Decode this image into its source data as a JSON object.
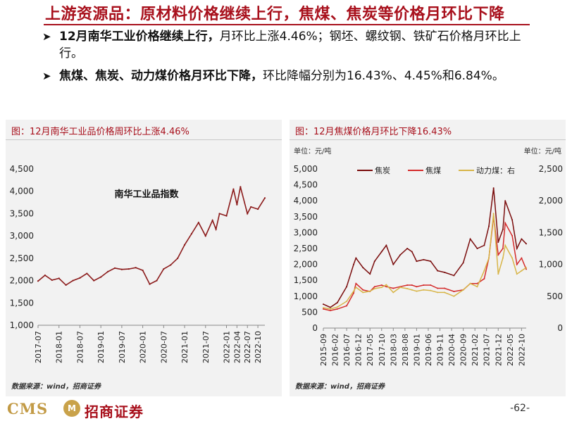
{
  "slide": {
    "title": "上游资源品：原材料价格继续上行，焦煤、焦炭等价格月环比下降",
    "bullets": [
      {
        "lead": "12月南华工业价格继续上行，",
        "rest": "月环比上涨4.46%；钢坯、螺纹钢、铁矿石价格月环比上行。"
      },
      {
        "lead": "焦煤、焦炭、动力煤价格月环比下降，",
        "rest": "环比降幅分别为16.43%、4.45%和6.84%。"
      }
    ],
    "page_number": "-62-",
    "logo": {
      "latin": "CMS",
      "badge": "M",
      "name": "招商证券"
    }
  },
  "chart_data": [
    {
      "type": "line",
      "title": "图：12月南华工业品价格周环比上涨4.46%",
      "annotation": "南华工业品指数",
      "source": "数据来源：wind，招商证券",
      "ylim": [
        1000,
        4500
      ],
      "yticks": [
        "1,000",
        "1,500",
        "2,000",
        "2,500",
        "3,000",
        "3,500",
        "4,000",
        "4,500"
      ],
      "xticks": [
        "2017-07",
        "2018-01",
        "2018-07",
        "2019-01",
        "2019-07",
        "2020-01",
        "2020-07",
        "2021-01",
        "2021-07",
        "2022-01",
        "2022-04",
        "2022-07",
        "2022-10"
      ],
      "series": [
        {
          "name": "南华工业品指数",
          "color": "#8b1a1a",
          "x": [
            "2017-07",
            "2017-09",
            "2017-11",
            "2018-01",
            "2018-03",
            "2018-05",
            "2018-07",
            "2018-09",
            "2018-11",
            "2019-01",
            "2019-03",
            "2019-05",
            "2019-07",
            "2019-09",
            "2019-11",
            "2020-01",
            "2020-03",
            "2020-05",
            "2020-07",
            "2020-09",
            "2020-11",
            "2021-01",
            "2021-03",
            "2021-05",
            "2021-07",
            "2021-09",
            "2021-10",
            "2021-11",
            "2022-01",
            "2022-03",
            "2022-04",
            "2022-05",
            "2022-07",
            "2022-08",
            "2022-10",
            "2022-12"
          ],
          "values": [
            1990,
            2120,
            2010,
            2050,
            1900,
            2000,
            2060,
            2160,
            2000,
            2080,
            2200,
            2280,
            2250,
            2260,
            2290,
            2230,
            1920,
            2000,
            2260,
            2350,
            2500,
            2800,
            3050,
            3300,
            3000,
            3350,
            3150,
            3500,
            3450,
            4050,
            3700,
            4100,
            3500,
            3650,
            3600,
            3850
          ]
        }
      ]
    },
    {
      "type": "line",
      "title": "图：12月焦煤价格月环比下降16.43%",
      "source": "数据来源：wind，招商证券",
      "left_unit": "单位：元/吨",
      "right_unit": "单位：元/吨",
      "ylim_left": [
        0,
        5000
      ],
      "ylim_right": [
        0,
        2500
      ],
      "yticks_left": [
        "0",
        "500",
        "1,000",
        "1,500",
        "2,000",
        "2,500",
        "3,000",
        "3,500",
        "4,000",
        "4,500",
        "5,000"
      ],
      "yticks_right": [
        "0",
        "500",
        "1,000",
        "1,500",
        "2,000",
        "2,500"
      ],
      "xticks": [
        "2015-09",
        "2016-02",
        "2016-07",
        "2016-12",
        "2017-05",
        "2017-10",
        "2018-03",
        "2018-08",
        "2019-01",
        "2019-06",
        "2019-11",
        "2020-04",
        "2020-09",
        "2021-02",
        "2021-07",
        "2021-12",
        "2022-05",
        "2022-10"
      ],
      "series": [
        {
          "name": "焦炭",
          "axis": "left",
          "color": "#7a0c0c",
          "x": [
            "2015-09",
            "2015-12",
            "2016-03",
            "2016-07",
            "2016-10",
            "2016-11",
            "2017-02",
            "2017-05",
            "2017-07",
            "2017-10",
            "2017-12",
            "2018-03",
            "2018-06",
            "2018-09",
            "2018-11",
            "2019-01",
            "2019-04",
            "2019-07",
            "2019-10",
            "2020-01",
            "2020-05",
            "2020-09",
            "2020-12",
            "2021-03",
            "2021-06",
            "2021-08",
            "2021-10",
            "2021-12",
            "2022-02",
            "2022-03",
            "2022-06",
            "2022-08",
            "2022-10",
            "2022-12"
          ],
          "values": [
            750,
            650,
            800,
            1300,
            2000,
            2200,
            1900,
            1700,
            2100,
            2400,
            2600,
            2000,
            2300,
            2500,
            2400,
            2100,
            2150,
            2100,
            1800,
            1750,
            1650,
            2050,
            2800,
            2500,
            2600,
            3200,
            4400,
            2700,
            3100,
            4000,
            3400,
            2500,
            2800,
            2650
          ]
        },
        {
          "name": "焦煤",
          "axis": "left",
          "color": "#d42a2a",
          "x": [
            "2015-09",
            "2015-12",
            "2016-03",
            "2016-07",
            "2016-10",
            "2016-11",
            "2017-02",
            "2017-05",
            "2017-07",
            "2017-10",
            "2017-12",
            "2018-03",
            "2018-06",
            "2018-09",
            "2018-11",
            "2019-01",
            "2019-04",
            "2019-07",
            "2019-10",
            "2020-01",
            "2020-05",
            "2020-09",
            "2020-12",
            "2021-03",
            "2021-06",
            "2021-08",
            "2021-10",
            "2021-12",
            "2022-02",
            "2022-03",
            "2022-06",
            "2022-08",
            "2022-10",
            "2022-12"
          ],
          "values": [
            600,
            550,
            600,
            700,
            1100,
            1400,
            1200,
            1150,
            1300,
            1350,
            1300,
            1250,
            1300,
            1350,
            1350,
            1300,
            1350,
            1350,
            1250,
            1250,
            1150,
            1200,
            1400,
            1400,
            1550,
            2200,
            3500,
            2300,
            2500,
            3300,
            2900,
            2000,
            2200,
            1850
          ]
        },
        {
          "name": "动力煤：右",
          "axis": "right",
          "color": "#d8b548",
          "x": [
            "2015-09",
            "2015-12",
            "2016-03",
            "2016-07",
            "2016-10",
            "2016-11",
            "2017-02",
            "2017-05",
            "2017-07",
            "2017-10",
            "2017-12",
            "2018-03",
            "2018-06",
            "2018-09",
            "2018-11",
            "2019-01",
            "2019-04",
            "2019-07",
            "2019-10",
            "2020-01",
            "2020-05",
            "2020-09",
            "2020-12",
            "2021-03",
            "2021-06",
            "2021-08",
            "2021-10",
            "2021-12",
            "2022-02",
            "2022-03",
            "2022-06",
            "2022-08",
            "2022-10",
            "2022-12"
          ],
          "values": [
            320,
            300,
            330,
            420,
            580,
            640,
            560,
            580,
            620,
            640,
            680,
            560,
            640,
            620,
            600,
            580,
            600,
            590,
            560,
            560,
            500,
            600,
            700,
            650,
            900,
            1100,
            1800,
            850,
            1100,
            1300,
            1100,
            850,
            900,
            950
          ]
        }
      ]
    }
  ]
}
